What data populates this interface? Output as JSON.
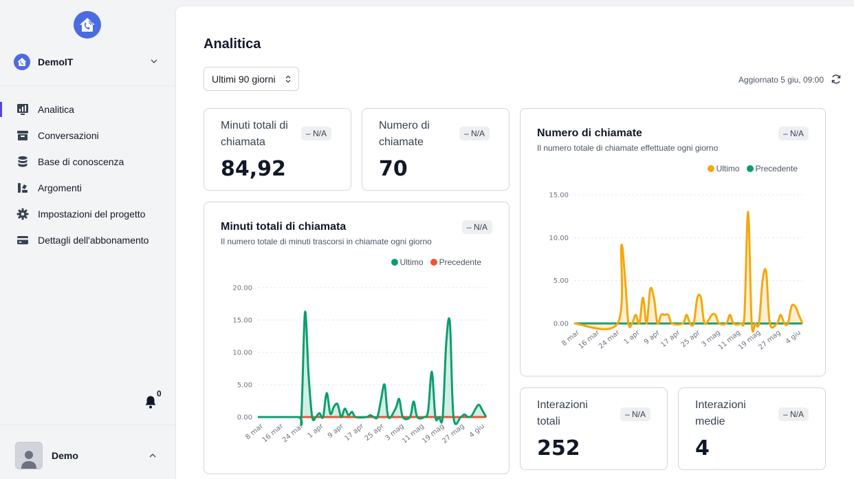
{
  "sidebar": {
    "project_name": "DemoIT",
    "nav": [
      {
        "label": "Analitica",
        "icon": "chart-icon",
        "active": true
      },
      {
        "label": "Conversazioni",
        "icon": "archive-icon",
        "active": false
      },
      {
        "label": "Base di conoscenza",
        "icon": "database-icon",
        "active": false
      },
      {
        "label": "Argomenti",
        "icon": "topics-icon",
        "active": false
      },
      {
        "label": "Impostazioni del progetto",
        "icon": "gear-icon",
        "active": false
      },
      {
        "label": "Dettagli dell'abbonamento",
        "icon": "credit-card-icon",
        "active": false
      }
    ],
    "notifications_count": "0",
    "user_name": "Demo"
  },
  "header": {
    "title": "Analitica",
    "range_value": "Ultimi 90 giorni",
    "updated": "Aggiornato 5 giu, 09:00"
  },
  "stats": {
    "total_minutes": {
      "title": "Minuti totali di chiamata",
      "value": "84,92",
      "badge": "– N/A"
    },
    "calls": {
      "title": "Numero di chiamate",
      "value": "70",
      "badge": "– N/A"
    },
    "total_interactions": {
      "title": "Interazioni totali",
      "value": "252",
      "badge": "– N/A"
    },
    "avg_interactions": {
      "title": "Interazioni medie",
      "value": "4",
      "badge": "– N/A"
    }
  },
  "colors": {
    "accent": "#4f46e5",
    "green": "#0a9e6e",
    "orange": "#f5a70c",
    "red": "#f2542d"
  },
  "chart_data": [
    {
      "id": "minutes",
      "type": "area",
      "title": "Minuti totali di chiamata",
      "subtitle": "Il numero totale di minuti trascorsi in chiamate ogni giorno",
      "badge": "– N/A",
      "legend": [
        "Ultimo",
        "Precedente"
      ],
      "ylim": [
        0,
        20
      ],
      "yticks": [
        "0.00",
        "5.00",
        "10.00",
        "15.00",
        "20.00"
      ],
      "xticks": [
        "8 mar",
        "16 mar",
        "24 mar",
        "1 apr",
        "9 apr",
        "17 apr",
        "25 apr",
        "3 mag",
        "11 mag",
        "19 mag",
        "27 mag",
        "4 giu"
      ],
      "series": [
        {
          "name": "Ultimo",
          "color": "#0a9e6e",
          "points": [
            [
              0,
              0
            ],
            [
              11,
              0
            ],
            [
              12,
              0
            ],
            [
              13,
              16.2
            ],
            [
              14,
              6.5
            ],
            [
              15,
              0
            ],
            [
              16,
              0
            ],
            [
              17,
              0.6
            ],
            [
              18,
              0
            ],
            [
              19,
              3.7
            ],
            [
              20,
              0.5
            ],
            [
              21,
              1.6
            ],
            [
              22,
              2.0
            ],
            [
              23,
              0
            ],
            [
              24,
              1.3
            ],
            [
              25,
              0.3
            ],
            [
              26,
              0.8
            ],
            [
              27,
              0
            ],
            [
              30,
              0
            ],
            [
              31,
              0.3
            ],
            [
              32,
              0
            ],
            [
              33,
              0
            ],
            [
              34,
              2.7
            ],
            [
              35,
              5.0
            ],
            [
              36,
              0
            ],
            [
              38,
              1.3
            ],
            [
              39,
              2.8
            ],
            [
              40,
              0
            ],
            [
              42,
              0
            ],
            [
              43,
              2.4
            ],
            [
              44,
              0
            ],
            [
              46,
              0
            ],
            [
              47,
              1.0
            ],
            [
              48,
              7.0
            ],
            [
              49,
              0
            ],
            [
              50,
              0
            ],
            [
              51,
              0
            ],
            [
              52,
              11.5
            ],
            [
              53,
              14.6
            ],
            [
              54,
              0
            ],
            [
              56,
              0
            ],
            [
              57,
              0.4
            ],
            [
              58,
              0
            ],
            [
              59,
              0.2
            ],
            [
              60,
              1.2
            ],
            [
              61,
              1.9
            ],
            [
              62,
              1.0
            ],
            [
              63,
              0
            ]
          ]
        },
        {
          "name": "Precedente",
          "color": "#f2542d",
          "points": [
            [
              0,
              0
            ],
            [
              63,
              0
            ]
          ]
        }
      ]
    },
    {
      "id": "calls",
      "type": "area",
      "title": "Numero di chiamate",
      "subtitle": "Il numero totale di chiamate effettuate ogni giorno",
      "badge": "– N/A",
      "legend": [
        "Ultimo",
        "Precedente"
      ],
      "ylim": [
        0,
        15
      ],
      "yticks": [
        "0.00",
        "5.00",
        "10.00",
        "15.00"
      ],
      "xticks": [
        "8 mar",
        "16 mar",
        "24 mar",
        "1 apr",
        "9 apr",
        "17 apr",
        "25 apr",
        "3 mag",
        "11 mag",
        "19 mag",
        "27 mag",
        "4 giu"
      ],
      "series": [
        {
          "name": "Ultimo",
          "color": "#f5a70c",
          "points": [
            [
              0,
              0
            ],
            [
              12,
              0
            ],
            [
              13,
              9.0
            ],
            [
              14,
              5.5
            ],
            [
              15,
              0
            ],
            [
              16,
              0
            ],
            [
              17,
              1.0
            ],
            [
              18,
              0
            ],
            [
              19,
              3.0
            ],
            [
              20,
              0
            ],
            [
              21,
              4.0
            ],
            [
              22,
              3.0
            ],
            [
              23,
              0
            ],
            [
              24,
              1.0
            ],
            [
              25,
              1.0
            ],
            [
              26,
              1.0
            ],
            [
              27,
              0
            ],
            [
              30,
              0
            ],
            [
              31,
              1.0
            ],
            [
              32,
              0
            ],
            [
              33,
              0
            ],
            [
              34,
              3.0
            ],
            [
              35,
              3.0
            ],
            [
              36,
              0
            ],
            [
              38,
              1.0
            ],
            [
              39,
              1.0
            ],
            [
              40,
              0
            ],
            [
              42,
              0
            ],
            [
              43,
              1.0
            ],
            [
              44,
              0
            ],
            [
              46,
              0
            ],
            [
              47,
              1.0
            ],
            [
              48,
              13.0
            ],
            [
              49,
              0
            ],
            [
              50,
              0
            ],
            [
              51,
              0
            ],
            [
              52,
              5.0
            ],
            [
              53,
              6.0
            ],
            [
              54,
              0
            ],
            [
              56,
              0
            ],
            [
              57,
              1.0
            ],
            [
              58,
              0
            ],
            [
              59,
              0
            ],
            [
              60,
              2.0
            ],
            [
              61,
              2.0
            ],
            [
              62,
              1.0
            ],
            [
              63,
              0
            ]
          ]
        },
        {
          "name": "Precedente",
          "color": "#0a9e6e",
          "points": [
            [
              0,
              0
            ],
            [
              63,
              0
            ]
          ]
        }
      ]
    }
  ]
}
